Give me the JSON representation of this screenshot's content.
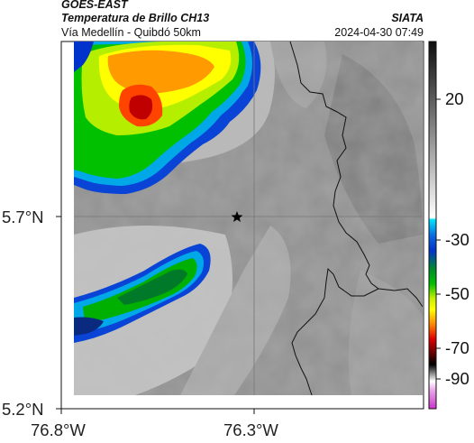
{
  "header": {
    "satellite": "GOES-EAST",
    "product": "Temperatura de Brillo CH13",
    "route": "Vía Medellín - Quibdó 50km",
    "source": "SIATA",
    "datetime": "2024-04-30 07:49"
  },
  "map": {
    "lat_labels": [
      "5.7°N",
      "5.2°N"
    ],
    "lon_labels": [
      "76.8°W",
      "76.3°W"
    ],
    "marker": "star-icon"
  },
  "colorbar": {
    "tick_labels": [
      "20",
      "-30",
      "-50",
      "-70",
      "-90"
    ],
    "colors": {
      "warm_top": "#0d0d0d",
      "warm_bottom": "#ffffff",
      "cyan": "#00e5ff",
      "blue": "#0033cc",
      "green": "#00c000",
      "yellow": "#ffff00",
      "orange": "#ff8800",
      "red": "#e00000",
      "dark_red": "#600000",
      "black": "#000000",
      "magenta": "#cc33cc"
    }
  }
}
